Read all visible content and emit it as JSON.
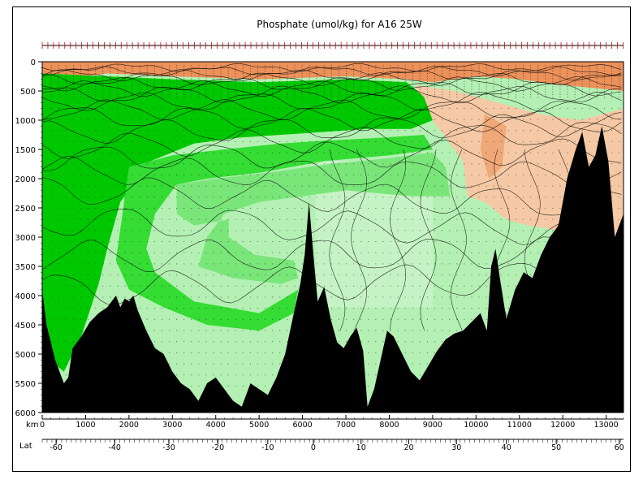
{
  "chart_data": {
    "type": "contour_section",
    "title": "Phosphate (umol/kg) for A16 25W",
    "x_axis": {
      "label": "km",
      "range": [
        0,
        13400
      ],
      "ticks": [
        0,
        1000,
        2000,
        3000,
        4000,
        5000,
        6000,
        7000,
        8000,
        9000,
        10000,
        11000,
        12000,
        13000
      ]
    },
    "lat_axis": {
      "label": "Lat",
      "ticks": [
        {
          "lat": -60,
          "km": 320
        },
        {
          "lat": -40,
          "km": 1670
        },
        {
          "lat": -30,
          "km": 2920
        },
        {
          "lat": -20,
          "km": 4050
        },
        {
          "lat": -10,
          "km": 5200
        },
        {
          "lat": 0,
          "km": 6250
        },
        {
          "lat": 10,
          "km": 7350
        },
        {
          "lat": 20,
          "km": 8450
        },
        {
          "lat": 30,
          "km": 9550
        },
        {
          "lat": 40,
          "km": 10700
        },
        {
          "lat": 50,
          "km": 11850
        },
        {
          "lat": 60,
          "km": 13300
        }
      ]
    },
    "y_axis": {
      "label": "",
      "range": [
        0,
        6000
      ],
      "inverted": true,
      "ticks": [
        0,
        500,
        1000,
        1500,
        2000,
        2500,
        3000,
        3500,
        4000,
        4500,
        5000,
        5500,
        6000
      ]
    },
    "colors": {
      "high_1": "#00c800",
      "high_2": "#34dc34",
      "high_3": "#7ae67a",
      "mid": "#b4f0b4",
      "mid_pale": "#d2f5d2",
      "low_1": "#f5c9a5",
      "low_2": "#f0a878",
      "low_3": "#ec915a",
      "bottom": "#000000"
    },
    "bathymetry": [
      [
        0,
        3900
      ],
      [
        100,
        4500
      ],
      [
        300,
        5100
      ],
      [
        500,
        5500
      ],
      [
        600,
        5400
      ],
      [
        700,
        4900
      ],
      [
        900,
        4700
      ],
      [
        1100,
        4450
      ],
      [
        1300,
        4300
      ],
      [
        1500,
        4200
      ],
      [
        1700,
        4000
      ],
      [
        1800,
        4200
      ],
      [
        1900,
        4050
      ],
      [
        2000,
        4100
      ],
      [
        2100,
        4000
      ],
      [
        2200,
        4250
      ],
      [
        2400,
        4600
      ],
      [
        2600,
        4900
      ],
      [
        2800,
        5000
      ],
      [
        3000,
        5300
      ],
      [
        3200,
        5500
      ],
      [
        3400,
        5600
      ],
      [
        3600,
        5800
      ],
      [
        3800,
        5500
      ],
      [
        4000,
        5400
      ],
      [
        4200,
        5600
      ],
      [
        4400,
        5800
      ],
      [
        4600,
        5900
      ],
      [
        4800,
        5500
      ],
      [
        5000,
        5600
      ],
      [
        5200,
        5700
      ],
      [
        5400,
        5400
      ],
      [
        5600,
        5000
      ],
      [
        5800,
        4300
      ],
      [
        5950,
        3800
      ],
      [
        6050,
        3300
      ],
      [
        6150,
        2400
      ],
      [
        6250,
        3300
      ],
      [
        6350,
        4100
      ],
      [
        6500,
        3850
      ],
      [
        6650,
        4400
      ],
      [
        6800,
        4800
      ],
      [
        6950,
        4900
      ],
      [
        7100,
        4700
      ],
      [
        7250,
        4550
      ],
      [
        7400,
        4950
      ],
      [
        7500,
        5900
      ],
      [
        7650,
        5600
      ],
      [
        7800,
        5100
      ],
      [
        7950,
        4600
      ],
      [
        8100,
        4700
      ],
      [
        8300,
        5000
      ],
      [
        8500,
        5300
      ],
      [
        8700,
        5450
      ],
      [
        8900,
        5200
      ],
      [
        9100,
        4950
      ],
      [
        9300,
        4750
      ],
      [
        9500,
        4650
      ],
      [
        9700,
        4600
      ],
      [
        9900,
        4450
      ],
      [
        10100,
        4300
      ],
      [
        10250,
        4600
      ],
      [
        10350,
        3500
      ],
      [
        10450,
        3200
      ],
      [
        10550,
        3700
      ],
      [
        10700,
        4400
      ],
      [
        10900,
        3900
      ],
      [
        11100,
        3600
      ],
      [
        11300,
        3700
      ],
      [
        11500,
        3300
      ],
      [
        11700,
        3000
      ],
      [
        11900,
        2800
      ],
      [
        12100,
        2000
      ],
      [
        12300,
        1500
      ],
      [
        12450,
        1200
      ],
      [
        12600,
        1800
      ],
      [
        12750,
        1600
      ],
      [
        12900,
        1100
      ],
      [
        13050,
        1700
      ],
      [
        13200,
        3000
      ],
      [
        13400,
        2600
      ]
    ],
    "regions": [
      {
        "name": "surface-low",
        "color": "low_3",
        "polygon": [
          [
            0,
            0
          ],
          [
            13400,
            0
          ],
          [
            13400,
            500
          ],
          [
            12000,
            400
          ],
          [
            11000,
            300
          ],
          [
            10000,
            250
          ],
          [
            9000,
            350
          ],
          [
            8400,
            300
          ],
          [
            7000,
            250
          ],
          [
            5000,
            300
          ],
          [
            3000,
            250
          ],
          [
            1500,
            200
          ],
          [
            500,
            300
          ],
          [
            0,
            200
          ]
        ]
      },
      {
        "name": "north-mid-low",
        "color": "low_1",
        "polygon": [
          [
            8600,
            400
          ],
          [
            9500,
            500
          ],
          [
            10500,
            700
          ],
          [
            11500,
            900
          ],
          [
            12400,
            1000
          ],
          [
            13400,
            800
          ],
          [
            13400,
            3000
          ],
          [
            12800,
            3000
          ],
          [
            12000,
            2900
          ],
          [
            11200,
            2800
          ],
          [
            10700,
            2700
          ],
          [
            10200,
            2400
          ],
          [
            9800,
            2300
          ],
          [
            9700,
            1700
          ],
          [
            9200,
            1200
          ],
          [
            8700,
            700
          ]
        ]
      },
      {
        "name": "north-core-low",
        "color": "low_2",
        "polygon": [
          [
            10200,
            900
          ],
          [
            10700,
            1100
          ],
          [
            10600,
            1800
          ],
          [
            10300,
            2000
          ],
          [
            10100,
            1500
          ]
        ]
      },
      {
        "name": "intermediate-green",
        "color": "high_1",
        "polygon": [
          [
            0,
            200
          ],
          [
            1500,
            250
          ],
          [
            3000,
            300
          ],
          [
            5000,
            350
          ],
          [
            7000,
            300
          ],
          [
            8400,
            350
          ],
          [
            8800,
            600
          ],
          [
            9000,
            1000
          ],
          [
            8500,
            1150
          ],
          [
            7500,
            1150
          ],
          [
            6500,
            1200
          ],
          [
            5500,
            1250
          ],
          [
            4500,
            1300
          ],
          [
            3500,
            1400
          ],
          [
            2500,
            1700
          ],
          [
            1800,
            2400
          ],
          [
            1500,
            3200
          ],
          [
            1300,
            3800
          ],
          [
            900,
            4700
          ],
          [
            500,
            5300
          ],
          [
            0,
            5000
          ]
        ]
      },
      {
        "name": "intermediate-mid",
        "color": "high_2",
        "polygon": [
          [
            2000,
            1800
          ],
          [
            3000,
            1600
          ],
          [
            4200,
            1500
          ],
          [
            5500,
            1400
          ],
          [
            6500,
            1350
          ],
          [
            7800,
            1300
          ],
          [
            8800,
            1250
          ],
          [
            9000,
            1500
          ],
          [
            8000,
            1600
          ],
          [
            6500,
            1700
          ],
          [
            5000,
            1900
          ],
          [
            3800,
            2000
          ],
          [
            3100,
            2100
          ],
          [
            2600,
            2600
          ],
          [
            2400,
            3200
          ],
          [
            2600,
            3600
          ],
          [
            3500,
            4100
          ],
          [
            5000,
            4300
          ],
          [
            5900,
            3900
          ],
          [
            5800,
            4300
          ],
          [
            5000,
            4600
          ],
          [
            3800,
            4500
          ],
          [
            2800,
            4200
          ],
          [
            2000,
            3900
          ],
          [
            1700,
            3400
          ]
        ]
      },
      {
        "name": "deep-mid",
        "color": "high_3",
        "polygon": [
          [
            3100,
            2100
          ],
          [
            4000,
            2000
          ],
          [
            5200,
            1900
          ],
          [
            6600,
            1750
          ],
          [
            8000,
            1650
          ],
          [
            9000,
            1550
          ],
          [
            9300,
            1800
          ],
          [
            9400,
            2300
          ],
          [
            8500,
            2300
          ],
          [
            7000,
            2200
          ],
          [
            6000,
            2300
          ],
          [
            5000,
            2400
          ],
          [
            4200,
            2600
          ],
          [
            3800,
            3000
          ],
          [
            3600,
            3500
          ],
          [
            4400,
            3700
          ],
          [
            5500,
            3800
          ],
          [
            5900,
            3700
          ],
          [
            5800,
            3400
          ],
          [
            4900,
            3300
          ],
          [
            4300,
            3000
          ],
          [
            4300,
            2700
          ],
          [
            3500,
            2800
          ],
          [
            3100,
            2600
          ]
        ]
      }
    ],
    "label_notes": "Contour value labels (e.g. 1.3, 1.7, 2.1, 2.2, 0.5, 0.8) appear along isolines; most are illegible at this resolution."
  }
}
